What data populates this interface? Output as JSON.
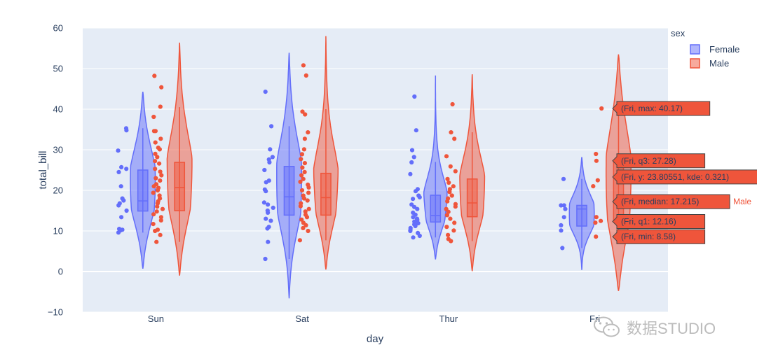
{
  "chart_data": {
    "type": "violin",
    "xlabel": "day",
    "ylabel": "total_bill",
    "ylim": [
      -10,
      60
    ],
    "yticks": [
      -10,
      0,
      10,
      20,
      30,
      40,
      50,
      60
    ],
    "ytick_labels": [
      "−10",
      "0",
      "10",
      "20",
      "30",
      "40",
      "50",
      "60"
    ],
    "categories": [
      "Sun",
      "Sat",
      "Thur",
      "Fri"
    ],
    "legend_title": "sex",
    "legend_position": "top-right",
    "series": [
      {
        "name": "Female",
        "color": "#636efa",
        "violins": [
          {
            "day": "Sun",
            "min": 9.6,
            "q1": 14.9,
            "median": 17.4,
            "q3": 25.0,
            "max": 35.3,
            "kde_min": 0.7,
            "kde_max": 44.3,
            "points": [
              35.3,
              34.8,
              29.8,
              25.7,
              25.3,
              24.5,
              21.0,
              18.0,
              17.5,
              16.8,
              16.3,
              15.0,
              13.4,
              10.5,
              10.3,
              10.1,
              9.6
            ]
          },
          {
            "day": "Sat",
            "min": 3.1,
            "q1": 13.9,
            "median": 18.4,
            "q3": 25.9,
            "max": 35.8,
            "kde_min": -6.6,
            "kde_max": 53.9,
            "points": [
              44.3,
              35.8,
              30.1,
              28.2,
              27.6,
              26.9,
              25.0,
              22.4,
              22.0,
              20.2,
              19.8,
              17.0,
              16.5,
              15.7,
              15.0,
              14.5,
              13.0,
              12.5,
              11.0,
              10.6,
              7.3,
              3.1
            ]
          },
          {
            "day": "Thur",
            "min": 8.4,
            "q1": 12.2,
            "median": 13.8,
            "q3": 18.8,
            "max": 27.0,
            "kde_min": 3.0,
            "kde_max": 48.3,
            "points": [
              43.1,
              34.8,
              29.9,
              28.2,
              26.9,
              24.0,
              20.3,
              19.8,
              18.7,
              18.3,
              17.9,
              16.5,
              15.9,
              15.4,
              14.5,
              14.0,
              13.4,
              13.0,
              12.7,
              12.3,
              11.9,
              11.6,
              11.2,
              10.7,
              10.3,
              10.0,
              9.5,
              8.8,
              8.4
            ]
          },
          {
            "day": "Fri",
            "min": 5.8,
            "q1": 11.2,
            "median": 15.4,
            "q3": 16.3,
            "max": 22.8,
            "kde_min": 0.4,
            "kde_max": 28.2,
            "points": [
              22.8,
              16.3,
              16.3,
              15.4,
              13.4,
              11.4,
              10.1,
              5.8
            ]
          }
        ]
      },
      {
        "name": "Male",
        "color": "#ef553b",
        "violins": [
          {
            "day": "Sun",
            "min": 7.3,
            "q1": 15.0,
            "median": 20.7,
            "q3": 26.9,
            "max": 40.5,
            "kde_min": -1.0,
            "kde_max": 56.4,
            "points": [
              48.2,
              45.4,
              40.6,
              38.1,
              34.6,
              34.6,
              32.7,
              31.8,
              30.5,
              30.1,
              29.0,
              28.2,
              27.2,
              26.6,
              25.3,
              24.6,
              23.7,
              23.0,
              22.4,
              21.5,
              21.0,
              20.6,
              20.0,
              19.4,
              18.7,
              18.0,
              17.3,
              16.8,
              16.0,
              15.4,
              14.8,
              14.1,
              13.4,
              12.6,
              11.7,
              10.3,
              10.0,
              9.0,
              7.3
            ]
          },
          {
            "day": "Sat",
            "min": 7.7,
            "q1": 13.9,
            "median": 18.2,
            "q3": 24.2,
            "max": 40.0,
            "kde_min": 0.5,
            "kde_max": 58.0,
            "points": [
              50.8,
              48.3,
              39.4,
              38.7,
              34.3,
              32.7,
              30.1,
              28.9,
              27.7,
              26.7,
              25.6,
              24.5,
              23.7,
              22.8,
              22.1,
              21.4,
              20.7,
              20.0,
              19.4,
              18.7,
              18.0,
              17.5,
              16.8,
              16.1,
              15.4,
              14.8,
              14.0,
              13.4,
              12.8,
              12.0,
              11.4,
              10.7,
              10.0,
              7.7
            ]
          },
          {
            "day": "Thur",
            "min": 7.5,
            "q1": 13.5,
            "median": 16.9,
            "q3": 22.8,
            "max": 34.3,
            "kde_min": 0.1,
            "kde_max": 48.6,
            "points": [
              41.2,
              34.3,
              32.7,
              28.4,
              25.9,
              24.7,
              22.8,
              21.9,
              21.0,
              20.3,
              19.6,
              18.7,
              18.0,
              17.3,
              16.6,
              16.0,
              15.4,
              14.7,
              13.9,
              13.0,
              12.0,
              11.0,
              10.1,
              9.0,
              8.0,
              7.5
            ]
          },
          {
            "day": "Fri",
            "min": 8.58,
            "q1": 12.16,
            "median": 17.215,
            "q3": 27.28,
            "max": 40.17,
            "kde_min": -4.8,
            "kde_max": 53.5,
            "points": [
              40.17,
              28.97,
              27.28,
              22.49,
              21.01,
              13.42,
              12.46,
              12.03,
              8.58
            ]
          }
        ]
      }
    ],
    "hover_labels": [
      {
        "text": "(Fri, max: 40.17)",
        "y": 40.17
      },
      {
        "text": "(Fri, q3: 27.28)",
        "y": 27.28
      },
      {
        "text": "(Fri, y: 23.80551, kde: 0.321)",
        "y": 23.80551
      },
      {
        "text": "(Fri, median: 17.215)",
        "y": 17.215,
        "side_label": "Male"
      },
      {
        "text": "(Fri, q1: 12.16)",
        "y": 12.16
      },
      {
        "text": "(Fri, min: 8.58)",
        "y": 8.58
      }
    ]
  },
  "watermark": {
    "text": "数据STUDIO"
  }
}
